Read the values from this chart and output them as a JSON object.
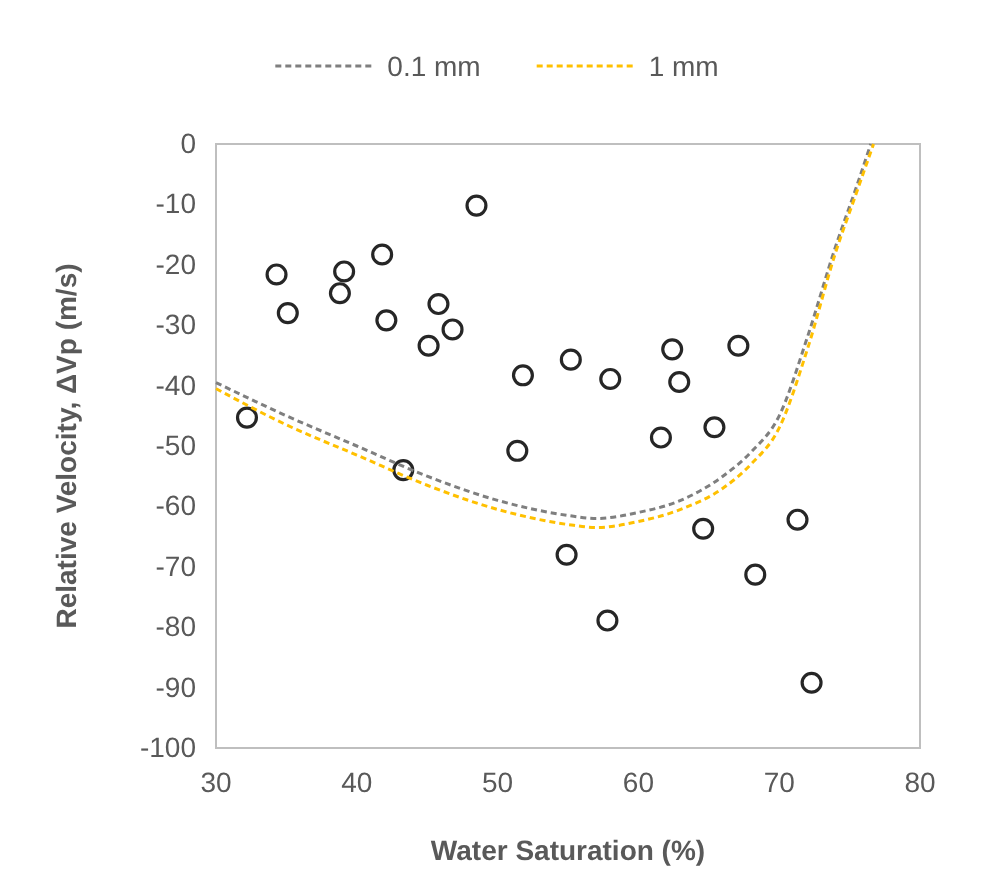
{
  "chart_data": {
    "type": "scatter",
    "xlabel": "Water Saturation (%)",
    "ylabel": "Relative Velocity,  ΔVp (m/s)",
    "xlim": [
      30,
      80
    ],
    "ylim": [
      -100,
      0
    ],
    "xticks": [
      30,
      40,
      50,
      60,
      70,
      80
    ],
    "yticks": [
      -100,
      -90,
      -80,
      -70,
      -60,
      -50,
      -40,
      -30,
      -20,
      -10,
      0
    ],
    "grid": false,
    "legend": "top",
    "series": [
      {
        "color": "#262626",
        "marker": "circle",
        "x": [
          32.2,
          34.3,
          35.1,
          39.1,
          38.8,
          41.8,
          42.1,
          43.3,
          48.5,
          45.8,
          46.8,
          45.1,
          51.8,
          51.4,
          55.2,
          54.9,
          58.0,
          57.8,
          62.4,
          62.9,
          61.6,
          65.4,
          67.1,
          64.6,
          71.3,
          68.3,
          72.3
        ],
        "values": [
          -45.3,
          -21.6,
          -28.0,
          -21.1,
          -24.7,
          -18.3,
          -29.2,
          -54.0,
          -10.2,
          -26.5,
          -30.7,
          -33.4,
          -38.3,
          -50.8,
          -35.7,
          -68.0,
          -38.9,
          -78.9,
          -34.0,
          -39.4,
          -48.6,
          -46.9,
          -33.4,
          -63.7,
          -62.2,
          -71.3,
          -89.2
        ]
      },
      {
        "type": "line",
        "name": "0.1 mm",
        "color": "#7f7f7f",
        "line_style": "dashed",
        "marker": "none",
        "x": [
          30,
          35,
          40,
          45,
          50,
          55,
          57,
          60,
          63,
          66,
          68,
          70,
          72,
          74,
          75.5,
          76.5
        ],
        "values": [
          -39.5,
          -45,
          -50,
          -55,
          -59,
          -61.5,
          -62,
          -61,
          -59,
          -55,
          -51,
          -45,
          -32,
          -17,
          -7,
          0
        ]
      },
      {
        "type": "line",
        "name": "1 mm",
        "color": "#ffc000",
        "line_style": "dashed",
        "marker": "none",
        "x": [
          30,
          35,
          40,
          45,
          50,
          55,
          57,
          60,
          63,
          66,
          68,
          70,
          72,
          74,
          75.5,
          76.7
        ],
        "values": [
          -40.5,
          -46.5,
          -51.5,
          -56.5,
          -60.5,
          -63,
          -63.5,
          -62.5,
          -60.5,
          -57,
          -53,
          -47,
          -34,
          -18,
          -8,
          0
        ]
      }
    ]
  }
}
